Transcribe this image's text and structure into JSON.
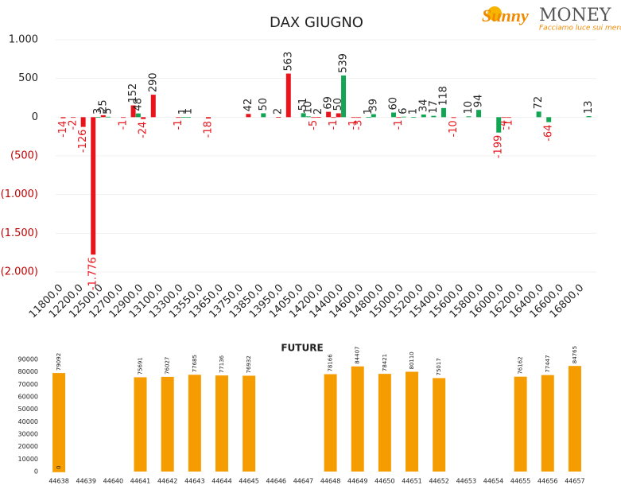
{
  "logo": {
    "brand": "Sunny",
    "name": "MONEY",
    "tagline": "Facciamo luce sui mercati"
  },
  "chart_data": [
    {
      "type": "bar",
      "title": "DAX GIUGNO",
      "categories": [
        "11800,0",
        null,
        null,
        null,
        "12200,0",
        null,
        null,
        null,
        "12500,0",
        null,
        null,
        null,
        "12700,0",
        null,
        null,
        null,
        "12900,0",
        null,
        null,
        null,
        "13100,0",
        null,
        null,
        null,
        "13300,0",
        null,
        null,
        null,
        "13550,0",
        null,
        null,
        null,
        "13650,0",
        null,
        null,
        null,
        "13750,0",
        null,
        null,
        null,
        "13850,0",
        null,
        null,
        null,
        "13950,0",
        null,
        null,
        null,
        "14050,0",
        null,
        null,
        null,
        "14200,0",
        null,
        null,
        null,
        "14400,0",
        null,
        null,
        null,
        "14600,0",
        null,
        null,
        null,
        "14800,0",
        null,
        null,
        null,
        "15000,0",
        null,
        null,
        null,
        "15200,0",
        null,
        null,
        null,
        "15400,0",
        null,
        null,
        null,
        "15600,0",
        null,
        null,
        null,
        "15800,0",
        null,
        null,
        null,
        "16000,0",
        null,
        null,
        null,
        "16200,0",
        null,
        null,
        null,
        "16400,0",
        null,
        null,
        null,
        "16600,0",
        null,
        null,
        null,
        "16800,0",
        null,
        null,
        null
      ],
      "series": [
        {
          "color": "#e8141b",
          "values": [
            null,
            -14,
            null,
            -2,
            null,
            -126,
            null,
            -1776,
            null,
            25,
            null,
            null,
            null,
            -1,
            null,
            152,
            null,
            -24,
            null,
            290,
            null,
            null,
            null,
            null,
            -1,
            null,
            null,
            null,
            null,
            null,
            -18,
            null,
            null,
            null,
            null,
            null,
            null,
            null,
            42,
            null,
            null,
            null,
            null,
            null,
            2,
            null,
            563,
            null,
            null,
            null,
            null,
            -5,
            2,
            null,
            69,
            -1,
            50,
            null,
            null,
            -1,
            -3,
            null,
            null,
            null,
            null,
            null,
            null,
            null,
            -1,
            null,
            null,
            null,
            null,
            null,
            null,
            null,
            null,
            null,
            null,
            -10,
            null,
            null,
            null,
            null,
            null,
            null,
            null,
            null,
            null,
            -4,
            -1,
            null,
            null,
            null,
            null,
            null,
            null,
            null,
            null,
            null,
            null,
            null,
            null,
            null,
            null,
            null,
            null,
            null
          ],
          "value_labels": [
            null,
            null,
            null,
            null,
            null,
            null,
            null,
            "-1.776",
            null,
            null,
            null,
            null,
            null,
            null,
            null,
            null,
            null,
            null,
            null,
            null,
            null,
            null,
            null,
            null,
            null,
            null,
            null,
            null,
            null,
            null,
            null,
            null,
            null,
            null,
            null,
            null,
            null,
            null,
            null,
            null,
            null,
            null,
            null,
            null,
            null,
            null,
            null,
            null,
            null,
            null,
            null,
            null,
            null,
            null,
            null,
            null,
            null,
            null,
            null,
            null,
            null,
            null,
            null,
            null,
            null,
            null,
            null,
            null,
            null,
            null,
            null,
            null,
            null,
            null,
            null,
            null,
            null,
            null,
            null,
            null,
            null,
            null,
            null,
            null,
            null,
            null,
            null,
            null,
            null,
            null,
            null,
            null,
            null,
            null,
            null,
            null,
            null,
            null,
            null,
            null,
            null,
            null,
            null,
            null,
            null,
            null,
            null,
            null
          ]
        },
        {
          "color": "#12a654",
          "values": [
            null,
            null,
            null,
            null,
            null,
            null,
            null,
            null,
            3,
            null,
            5,
            null,
            null,
            null,
            null,
            null,
            48,
            null,
            null,
            null,
            null,
            null,
            null,
            null,
            null,
            1,
            1,
            null,
            null,
            null,
            null,
            null,
            null,
            null,
            null,
            null,
            null,
            null,
            null,
            null,
            null,
            50,
            null,
            null,
            null,
            null,
            null,
            null,
            null,
            51,
            10,
            null,
            null,
            null,
            null,
            null,
            null,
            539,
            null,
            null,
            null,
            null,
            1,
            39,
            null,
            null,
            null,
            60,
            null,
            6,
            null,
            1,
            null,
            34,
            null,
            17,
            null,
            118,
            null,
            null,
            null,
            null,
            10,
            null,
            94,
            null,
            null,
            null,
            -199,
            null,
            null,
            null,
            null,
            null,
            null,
            null,
            72,
            null,
            -64,
            null,
            null,
            null,
            null,
            null,
            null,
            null,
            13,
            null
          ]
        }
      ],
      "ylim": [
        -2000,
        1000
      ],
      "yticks": [
        {
          "value": 1000,
          "label": "1.000"
        },
        500,
        0,
        {
          "value": -500,
          "label": "(500)"
        },
        {
          "value": -1000,
          "label": "(1.000)"
        },
        {
          "value": -1500,
          "label": "(1.500)"
        },
        {
          "value": -2000,
          "label": "(2.000)"
        }
      ],
      "grid": true
    },
    {
      "type": "bar",
      "title": "FUTURE",
      "categories": [
        "44638",
        "44639",
        "44640",
        "44641",
        "44642",
        "44643",
        "44644",
        "44645",
        "44646",
        "44647",
        "44648",
        "44649",
        "44650",
        "44651",
        "44652",
        "44653",
        "44654",
        "44655",
        "44656",
        "44657"
      ],
      "series": [
        {
          "color": "#f59c00",
          "values": [
            79092,
            null,
            null,
            75691,
            76027,
            77685,
            77136,
            76932,
            null,
            null,
            78166,
            84407,
            78421,
            80110,
            75017,
            null,
            null,
            76162,
            77447,
            84765
          ]
        },
        {
          "color": "#f59c00",
          "values": [
            0,
            null,
            null,
            null,
            null,
            null,
            null,
            null,
            null,
            null,
            null,
            null,
            null,
            null,
            null,
            null,
            null,
            null,
            null,
            null
          ]
        }
      ],
      "ylim": [
        0,
        90000
      ],
      "yticks": [
        0,
        10000,
        20000,
        30000,
        40000,
        50000,
        60000,
        70000,
        80000,
        90000
      ],
      "grid": false
    }
  ]
}
